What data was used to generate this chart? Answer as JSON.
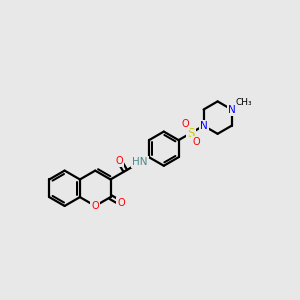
{
  "background_color": "#e8e8e8",
  "line_color": "#000000",
  "bond_width": 1.6,
  "atom_colors": {
    "O": "#ff0000",
    "N": "#0000ff",
    "S": "#cccc00",
    "H": "#4a8a8a",
    "C": "#000000"
  },
  "figsize": [
    3.0,
    3.0
  ],
  "dpi": 100
}
